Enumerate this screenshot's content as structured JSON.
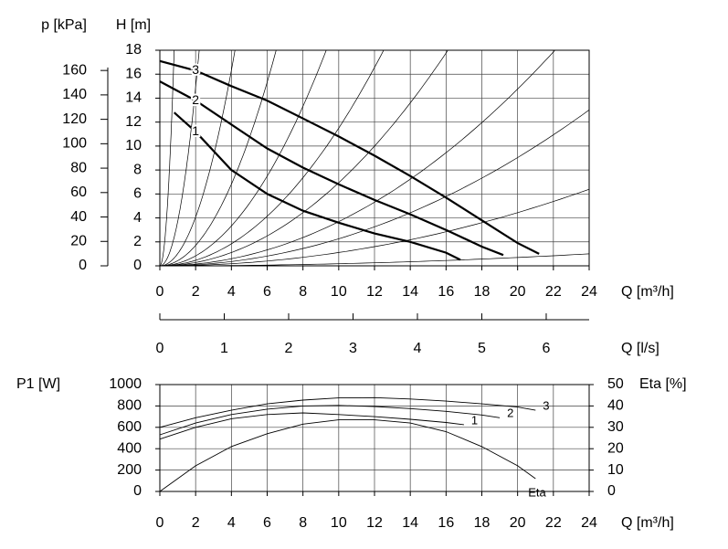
{
  "chart_data": [
    {
      "type": "line",
      "xlabel": "Q [m³/h]",
      "ylabel": "H [m]",
      "y2label": "p [kPa]",
      "x2label": "Q [l/s]",
      "xlim": [
        0,
        24
      ],
      "xticks": [
        0,
        2,
        4,
        6,
        8,
        10,
        12,
        14,
        16,
        18,
        20,
        22,
        24
      ],
      "ylim": [
        0,
        18
      ],
      "yticks": [
        0,
        2,
        4,
        6,
        8,
        10,
        12,
        14,
        16,
        18
      ],
      "y2lim": [
        0,
        176.58
      ],
      "y2ticks": [
        0,
        20,
        40,
        60,
        80,
        100,
        120,
        140,
        160
      ],
      "x2lim": [
        0,
        6.667
      ],
      "x2ticks": [
        0,
        1,
        2,
        3,
        4,
        5,
        6
      ],
      "grid": true,
      "color": "#000000",
      "system_curves": [
        28.1,
        3.72,
        1.02,
        0.426,
        0.208,
        0.115,
        0.0694,
        0.0369,
        0.0226,
        0.0111,
        0.00174
      ],
      "series": [
        {
          "name": "1",
          "x": [
            0.8,
            2,
            4,
            6,
            8,
            10,
            12,
            14,
            16,
            16.8
          ],
          "values": [
            12.8,
            11.2,
            8.0,
            6.0,
            4.6,
            3.6,
            2.7,
            2.0,
            1.1,
            0.5
          ]
        },
        {
          "name": "2",
          "x": [
            0,
            2,
            4,
            6,
            8,
            10,
            12,
            14,
            16,
            18,
            19.2
          ],
          "values": [
            15.4,
            13.8,
            11.8,
            9.8,
            8.2,
            6.8,
            5.5,
            4.3,
            3.0,
            1.6,
            0.9
          ]
        },
        {
          "name": "3",
          "x": [
            0,
            2,
            4,
            6,
            8,
            10,
            12,
            14,
            16,
            18,
            20,
            21.2
          ],
          "values": [
            17.1,
            16.3,
            15.0,
            13.8,
            12.3,
            10.8,
            9.2,
            7.5,
            5.7,
            3.8,
            1.9,
            1.0
          ]
        }
      ]
    },
    {
      "type": "line",
      "xlabel": "Q [m³/h]",
      "ylabel": "P1 [W]",
      "y2label": "Eta [%]",
      "xlim": [
        0,
        24
      ],
      "xticks": [
        0,
        2,
        4,
        6,
        8,
        10,
        12,
        14,
        16,
        18,
        20,
        22,
        24
      ],
      "ylim": [
        0,
        1000
      ],
      "yticks": [
        0,
        200,
        400,
        600,
        800,
        1000
      ],
      "y2lim": [
        0,
        50
      ],
      "y2ticks": [
        0,
        10,
        20,
        30,
        40,
        50
      ],
      "grid": true,
      "color": "#000000",
      "series": [
        {
          "name": "1",
          "x": [
            0,
            2,
            4,
            6,
            8,
            10,
            12,
            14,
            16,
            17
          ],
          "values": [
            490,
            600,
            680,
            720,
            735,
            720,
            700,
            675,
            645,
            625
          ]
        },
        {
          "name": "2",
          "x": [
            0,
            2,
            4,
            6,
            8,
            10,
            12,
            14,
            16,
            18,
            19
          ],
          "values": [
            530,
            640,
            720,
            770,
            800,
            805,
            795,
            775,
            750,
            715,
            690
          ]
        },
        {
          "name": "3",
          "x": [
            0,
            2,
            4,
            6,
            8,
            10,
            12,
            14,
            16,
            18,
            20,
            21
          ],
          "values": [
            600,
            690,
            760,
            820,
            855,
            875,
            878,
            865,
            845,
            820,
            790,
            760
          ]
        },
        {
          "name": "Eta",
          "axis": "y2",
          "x": [
            0,
            2,
            4,
            6,
            8,
            10,
            12,
            14,
            16,
            18,
            20,
            21
          ],
          "values": [
            0,
            12,
            21,
            27,
            31.5,
            33.5,
            33.5,
            32,
            28,
            21,
            12,
            6
          ]
        }
      ]
    }
  ]
}
